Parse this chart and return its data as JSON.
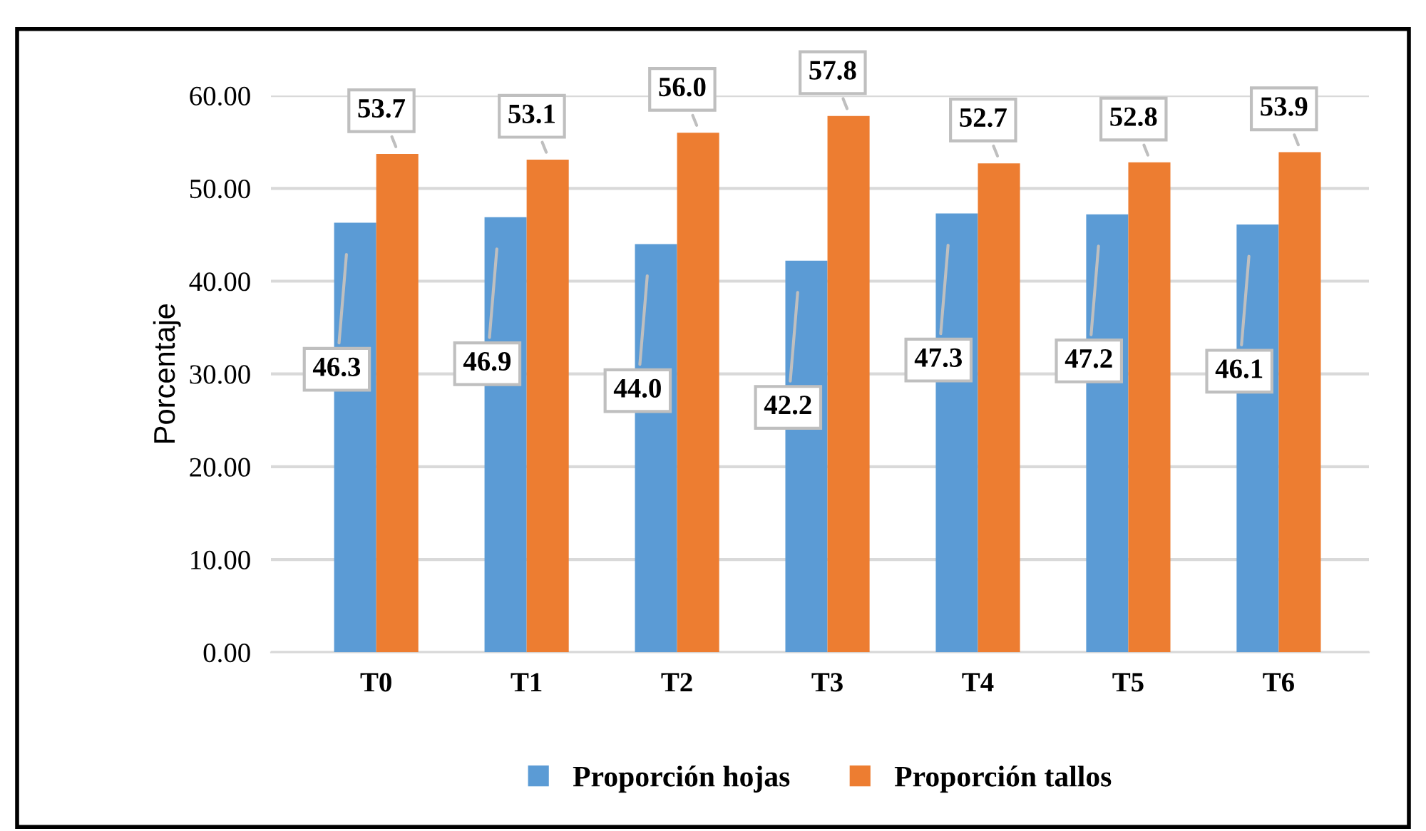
{
  "chart_data": {
    "type": "bar",
    "ylabel": "Porcentaje",
    "categories": [
      "T0",
      "T1",
      "T2",
      "T3",
      "T4",
      "T5",
      "T6"
    ],
    "series": [
      {
        "name": "Proporción hojas",
        "color": "#5b9bd5",
        "values": [
          46.3,
          46.9,
          44.0,
          42.2,
          47.3,
          47.2,
          46.1
        ],
        "value_labels": [
          "46.3",
          "46.9",
          "44.0",
          "42.2",
          "47.3",
          "47.2",
          "46.1"
        ]
      },
      {
        "name": "Proporción tallos",
        "color": "#ed7d31",
        "values": [
          53.7,
          53.1,
          56.0,
          57.8,
          52.7,
          52.8,
          53.9
        ],
        "value_labels": [
          "53.7",
          "53.1",
          "56.0",
          "57.8",
          "52.7",
          "52.8",
          "53.9"
        ]
      }
    ],
    "ylim": [
      0,
      60
    ],
    "yticks": [
      {
        "value": 0,
        "label": "0.00"
      },
      {
        "value": 10,
        "label": "10.00"
      },
      {
        "value": 20,
        "label": "20.00"
      },
      {
        "value": 30,
        "label": "30.00"
      },
      {
        "value": 40,
        "label": "40.00"
      },
      {
        "value": 50,
        "label": "50.00"
      },
      {
        "value": 60,
        "label": "60.00"
      }
    ],
    "grid": "y",
    "legend": "bottom"
  }
}
